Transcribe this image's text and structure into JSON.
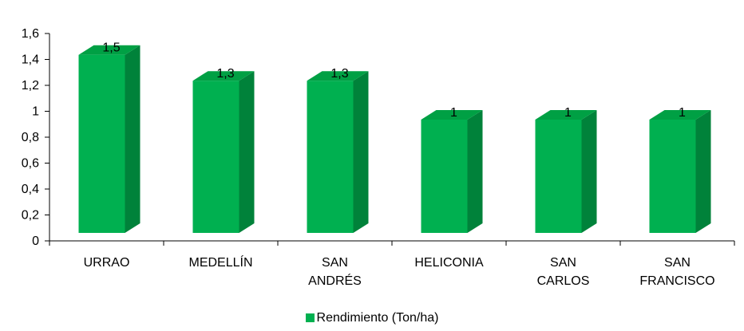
{
  "chart_data": {
    "type": "bar",
    "categories": [
      [
        "URRAO"
      ],
      [
        "MEDELLÍN"
      ],
      [
        "SAN",
        "ANDRÉS"
      ],
      [
        "HELICONIA"
      ],
      [
        "SAN",
        "CARLOS"
      ],
      [
        "SAN",
        "FRANCISCO"
      ]
    ],
    "series": [
      {
        "name": "Rendimiento (Ton/ha)",
        "values": [
          1.5,
          1.3,
          1.3,
          1,
          1,
          1
        ],
        "data_labels": [
          "1,5",
          "1,3",
          "1,3",
          "1",
          "1",
          "1"
        ]
      }
    ],
    "ylim": [
      0,
      1.6
    ],
    "yticks": [
      "0",
      "0,2",
      "0,4",
      "0,6",
      "0,8",
      "1",
      "1,2",
      "1,4",
      "1,6"
    ],
    "grid": false,
    "legend_position": "bottom",
    "three_d": true
  },
  "colors": {
    "bar_front": "#00b050",
    "bar_side": "#00823a",
    "bar_top": "#00a044",
    "axis": "#000000"
  }
}
